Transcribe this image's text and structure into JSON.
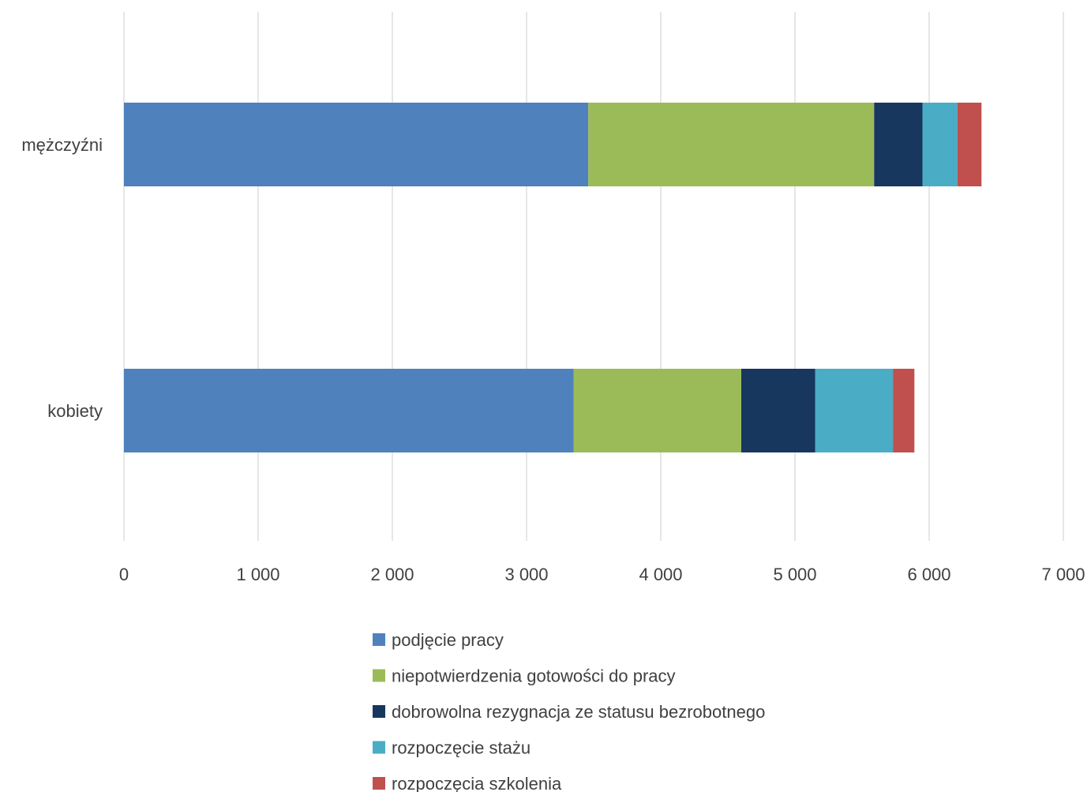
{
  "chart_data": {
    "type": "bar",
    "orientation": "horizontal",
    "stacked": true,
    "categories": [
      "mężczyźni",
      "kobiety"
    ],
    "series": [
      {
        "name": "podjęcie pracy",
        "color": "#4f81bd",
        "values": [
          3460,
          3350
        ]
      },
      {
        "name": "niepotwierdzenia gotowości do pracy",
        "color": "#9bbb59",
        "values": [
          2130,
          1250
        ]
      },
      {
        "name": "dobrowolna rezygnacja ze statusu bezrobotnego",
        "color": "#17375e",
        "values": [
          360,
          550
        ]
      },
      {
        "name": "rozpoczęcie stażu",
        "color": "#4bacc6",
        "values": [
          260,
          580
        ]
      },
      {
        "name": "rozpoczęcia szkolenia",
        "color": "#c0504d",
        "values": [
          180,
          160
        ]
      }
    ],
    "xlim": [
      0,
      7000
    ],
    "xticks": [
      0,
      1000,
      2000,
      3000,
      4000,
      5000,
      6000,
      7000
    ],
    "xtick_labels": [
      "0",
      "1 000",
      "2 000",
      "3 000",
      "4 000",
      "5 000",
      "6 000",
      "7 000"
    ],
    "grid": true,
    "legend_position": "bottom",
    "title": "",
    "xlabel": "",
    "ylabel": ""
  }
}
